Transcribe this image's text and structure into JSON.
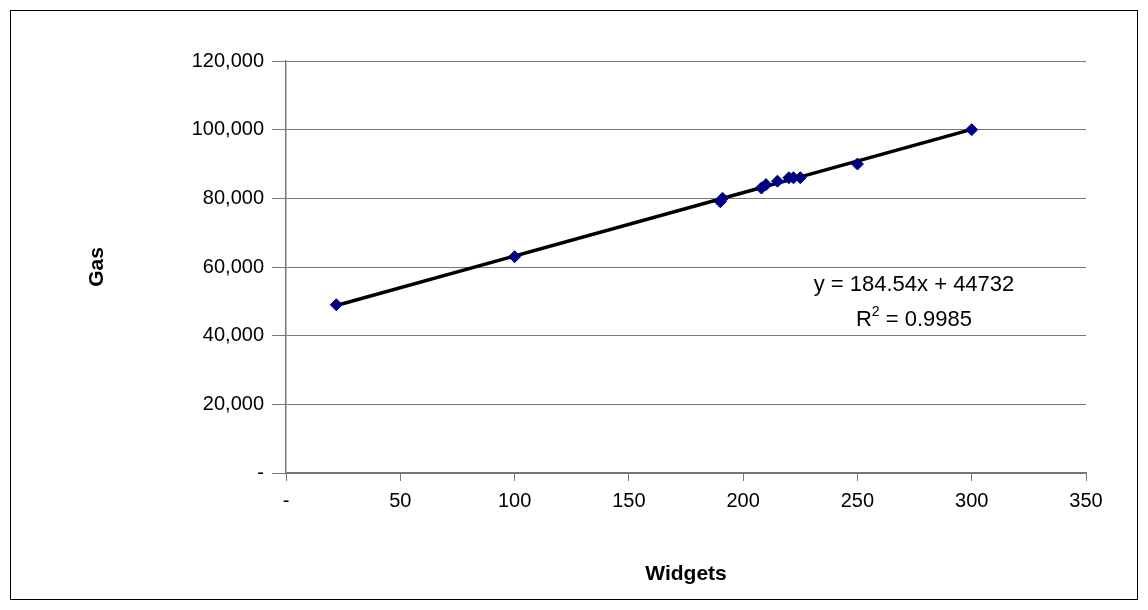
{
  "chart_data": {
    "type": "scatter",
    "xlabel": "Widgets",
    "ylabel": "Gas",
    "series": [
      {
        "color": "#000080",
        "x": [
          22,
          100,
          190,
          191,
          208,
          210,
          215,
          220,
          222,
          225,
          250,
          300
        ],
        "values": [
          49000,
          63000,
          79000,
          80000,
          83000,
          84000,
          85000,
          86000,
          86000,
          86000,
          90000,
          100000
        ]
      },
      {
        "type": "line",
        "color": "#000000",
        "x": [
          22,
          300
        ],
        "values": [
          48800,
          100100
        ],
        "marker": "none"
      }
    ],
    "marker": "diamond",
    "xlim": [
      0,
      350
    ],
    "xticks": [
      {
        "value": 0,
        "label": "-"
      },
      50,
      100,
      150,
      200,
      250,
      300,
      350
    ],
    "ylim": [
      0,
      120000
    ],
    "yticks": [
      {
        "value": 0,
        "label": "-"
      },
      {
        "value": 20000,
        "label": "20,000"
      },
      {
        "value": 40000,
        "label": "40,000"
      },
      {
        "value": 60000,
        "label": "60,000"
      },
      {
        "value": 80000,
        "label": "80,000"
      },
      {
        "value": 100000,
        "label": "100,000"
      },
      {
        "value": 120000,
        "label": "120,000"
      }
    ],
    "grid": "y",
    "annotations": [
      "y = 184.54x + 44732",
      "R$^{2}$ = 0.9985"
    ]
  }
}
